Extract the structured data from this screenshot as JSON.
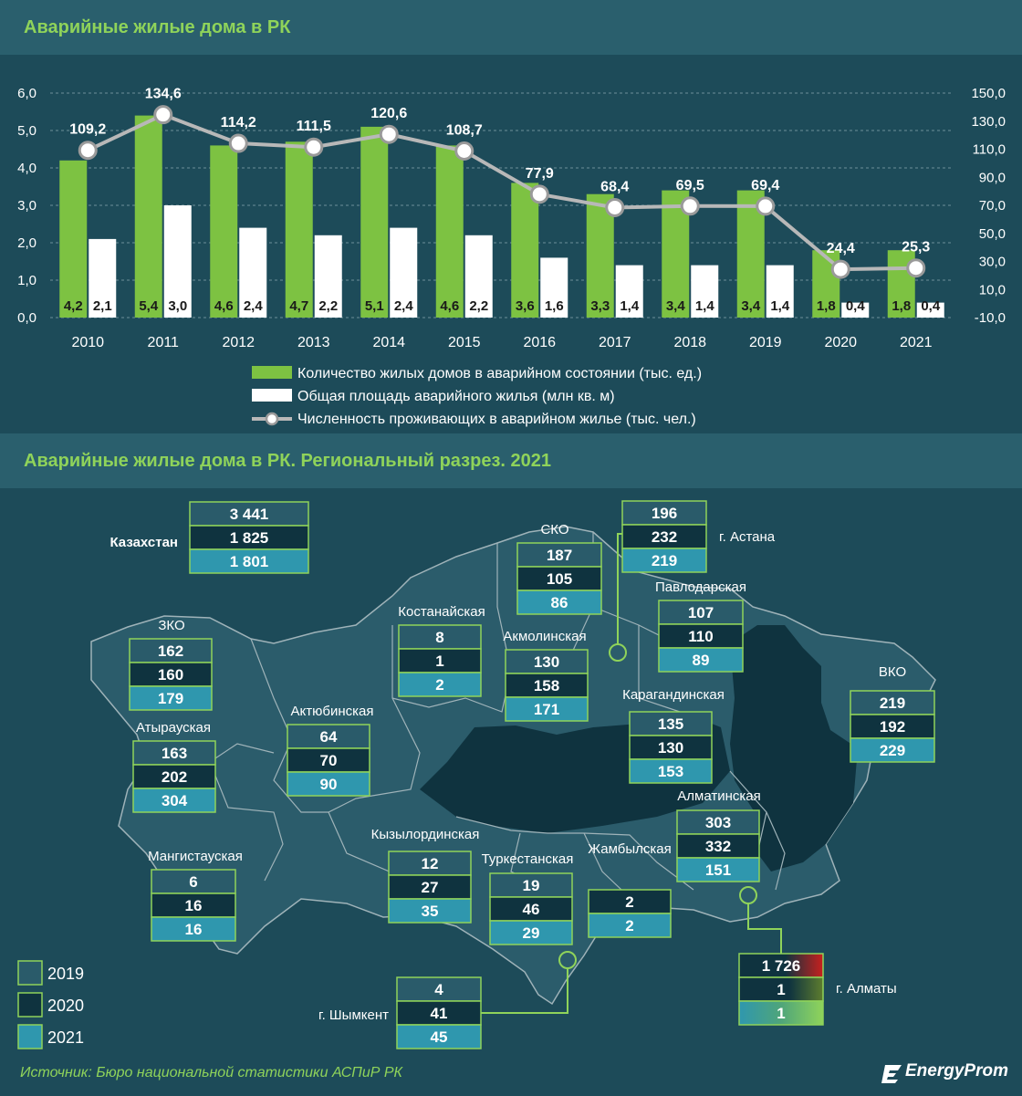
{
  "header": {
    "title": "Аварийные жилые дома в РК"
  },
  "map_header": {
    "title": "Аварийные жилые дома в РК. Региональный разрез. 2021"
  },
  "chart_data": {
    "type": "bar",
    "categories": [
      "2010",
      "2011",
      "2012",
      "2013",
      "2014",
      "2015",
      "2016",
      "2017",
      "2018",
      "2019",
      "2020",
      "2021"
    ],
    "series": [
      {
        "name": "Количество жилых домов в аварийном состоянии (тыс. ед.)",
        "type": "bar",
        "axis": "left",
        "color": "#7dc242",
        "values": [
          4.2,
          5.4,
          4.6,
          4.7,
          5.1,
          4.6,
          3.6,
          3.3,
          3.4,
          3.4,
          1.8,
          1.8
        ],
        "labels": [
          "4,2",
          "5,4",
          "4,6",
          "4,7",
          "5,1",
          "4,6",
          "3,6",
          "3,3",
          "3,4",
          "3,4",
          "1,8",
          "1,8"
        ]
      },
      {
        "name": "Общая площадь аварийного жилья (млн кв. м)",
        "type": "bar",
        "axis": "left",
        "color": "#ffffff",
        "values": [
          2.1,
          3.0,
          2.4,
          2.2,
          2.4,
          2.2,
          1.6,
          1.4,
          1.4,
          1.4,
          0.4,
          0.4
        ],
        "labels": [
          "2,1",
          "3,0",
          "2,4",
          "2,2",
          "2,4",
          "2,2",
          "1,6",
          "1,4",
          "1,4",
          "1,4",
          "0,4",
          "0,4"
        ]
      },
      {
        "name": "Численность проживающих в аварийном жилье (тыс. чел.)",
        "type": "line",
        "axis": "right",
        "color": "#b8b8b8",
        "values": [
          109.2,
          134.6,
          114.2,
          111.5,
          120.6,
          108.7,
          77.9,
          68.4,
          69.5,
          69.4,
          24.4,
          25.3
        ],
        "labels": [
          "109,2",
          "134,6",
          "114,2",
          "111,5",
          "120,6",
          "108,7",
          "77,9",
          "68,4",
          "69,5",
          "69,4",
          "24,4",
          "25,3"
        ]
      }
    ],
    "y_left": {
      "ylim": [
        0,
        6
      ],
      "ticks": [
        "0,0",
        "1,0",
        "2,0",
        "3,0",
        "4,0",
        "5,0",
        "6,0"
      ]
    },
    "y_right": {
      "ylim": [
        -10,
        150
      ],
      "ticks": [
        "-10,0",
        "10,0",
        "30,0",
        "50,0",
        "70,0",
        "90,0",
        "110,0",
        "130,0",
        "150,0"
      ]
    },
    "legend_position": "bottom",
    "grid": true
  },
  "map_data": {
    "legend": [
      {
        "label": "2019",
        "color": "#2a5b6a"
      },
      {
        "label": "2020",
        "color": "#0f333f"
      },
      {
        "label": "2021",
        "color": "#2f97ae"
      }
    ],
    "regions": [
      {
        "name": "Казахстан",
        "v2019": "3 441",
        "v2020": "1 825",
        "v2021": "1 801"
      },
      {
        "name": "ЗКО",
        "v2019": "162",
        "v2020": "160",
        "v2021": "179"
      },
      {
        "name": "Атырауская",
        "v2019": "163",
        "v2020": "202",
        "v2021": "304"
      },
      {
        "name": "Мангистауская",
        "v2019": "6",
        "v2020": "16",
        "v2021": "16"
      },
      {
        "name": "Актюбинская",
        "v2019": "64",
        "v2020": "70",
        "v2021": "90"
      },
      {
        "name": "Костанайская",
        "v2019": "8",
        "v2020": "1",
        "v2021": "2"
      },
      {
        "name": "СКО",
        "v2019": "187",
        "v2020": "105",
        "v2021": "86"
      },
      {
        "name": "г. Астана",
        "v2019": "196",
        "v2020": "232",
        "v2021": "219"
      },
      {
        "name": "Акмолинская",
        "v2019": "130",
        "v2020": "158",
        "v2021": "171"
      },
      {
        "name": "Павлодарская",
        "v2019": "107",
        "v2020": "110",
        "v2021": "89"
      },
      {
        "name": "Карагандинская",
        "v2019": "135",
        "v2020": "130",
        "v2021": "153"
      },
      {
        "name": "ВКО",
        "v2019": "219",
        "v2020": "192",
        "v2021": "229"
      },
      {
        "name": "Кызылординская",
        "v2019": "12",
        "v2020": "27",
        "v2021": "35"
      },
      {
        "name": "Туркестанская",
        "v2019": "19",
        "v2020": "46",
        "v2021": "29"
      },
      {
        "name": "Жамбылская",
        "v2019": "",
        "v2020": "2",
        "v2021": "2"
      },
      {
        "name": "Алматинская",
        "v2019": "303",
        "v2020": "332",
        "v2021": "151"
      },
      {
        "name": "г. Алматы",
        "v2019": "1 726",
        "v2020": "1",
        "v2021": "1"
      },
      {
        "name": "г. Шымкент",
        "v2019": "4",
        "v2020": "41",
        "v2021": "45"
      }
    ]
  },
  "footer": {
    "source": "Источник: Бюро национальной статистики АСПиР РК",
    "brand": "EnergyProm"
  }
}
